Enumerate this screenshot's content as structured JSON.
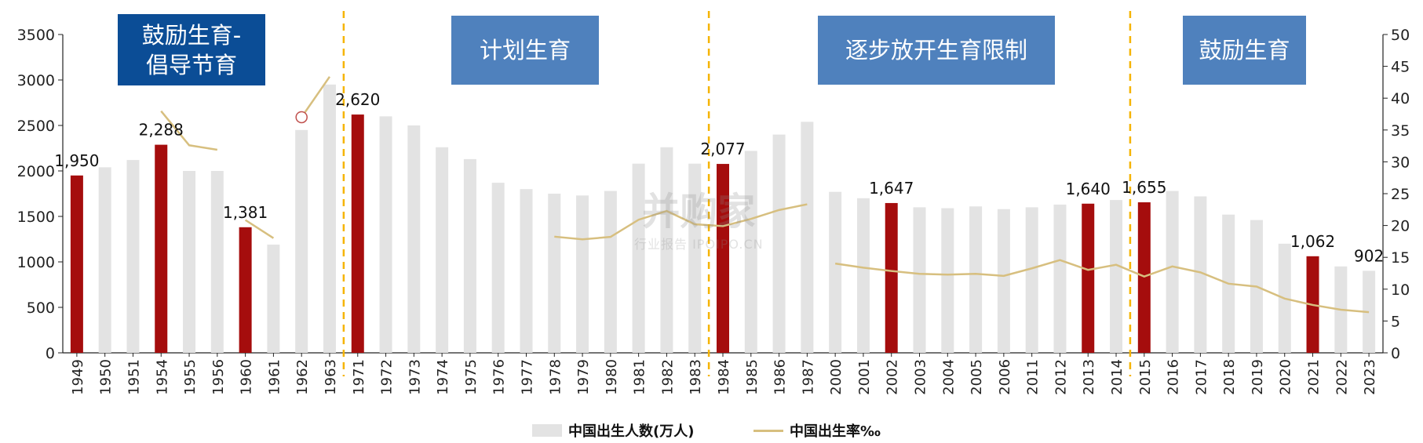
{
  "chart_data": {
    "type": "bar",
    "categories": [
      "1949",
      "1950",
      "1951",
      "1954",
      "1955",
      "1956",
      "1960",
      "1961",
      "1962",
      "1963",
      "1971",
      "1972",
      "1973",
      "1974",
      "1975",
      "1976",
      "1977",
      "1978",
      "1979",
      "1980",
      "1981",
      "1982",
      "1983",
      "1984",
      "1985",
      "1986",
      "1987",
      "2000",
      "2001",
      "2002",
      "2003",
      "2004",
      "2005",
      "2006",
      "2011",
      "2012",
      "2013",
      "2014",
      "2015",
      "2016",
      "2017",
      "2018",
      "2019",
      "2020",
      "2021",
      "2022",
      "2023"
    ],
    "series": [
      {
        "name": "中国出生人数(万人)",
        "type": "bar",
        "axis": "left",
        "values": [
          1950,
          2040,
          2120,
          2288,
          2000,
          2000,
          1381,
          1190,
          2450,
          2950,
          2620,
          2600,
          2500,
          2260,
          2130,
          1870,
          1800,
          1750,
          1730,
          1780,
          2080,
          2260,
          2080,
          2077,
          2220,
          2400,
          2540,
          1770,
          1700,
          1647,
          1600,
          1590,
          1610,
          1580,
          1600,
          1630,
          1640,
          1680,
          1655,
          1780,
          1720,
          1520,
          1460,
          1200,
          1062,
          950,
          902
        ],
        "highlight_indices": [
          0,
          3,
          6,
          10,
          23,
          29,
          36,
          38,
          44
        ],
        "highlight_color": "#a50d0d",
        "base_color": "#e3e3e3"
      },
      {
        "name": "中国出生率‰",
        "type": "line",
        "axis": "right",
        "color": "#d7bf7f",
        "segments": [
          {
            "start": 3,
            "values": [
              37.97,
              32.6,
              31.9
            ]
          },
          {
            "start": 6,
            "values": [
              20.86,
              18.02
            ]
          },
          {
            "start": 8,
            "values": [
              37.01,
              43.37
            ]
          },
          {
            "start": 17,
            "values": [
              18.25,
              17.82,
              18.21,
              20.91,
              22.28,
              20.19,
              19.9,
              21.04,
              22.43,
              23.33
            ]
          },
          {
            "start": 27,
            "values": [
              14.03,
              13.38,
              12.86,
              12.41,
              12.29,
              12.4,
              12.09,
              13.27,
              14.57,
              13.03,
              13.83,
              11.99,
              13.57,
              12.64,
              10.86,
              10.41,
              8.52,
              7.52,
              6.77,
              6.39
            ]
          }
        ],
        "marker_index": 8
      }
    ],
    "data_labels": [
      {
        "index": 0,
        "text": "1,950"
      },
      {
        "index": 3,
        "text": "2,288"
      },
      {
        "index": 6,
        "text": "1,381"
      },
      {
        "index": 10,
        "text": "2,620"
      },
      {
        "index": 23,
        "text": "2,077"
      },
      {
        "index": 29,
        "text": "1,647"
      },
      {
        "index": 36,
        "text": "1,640"
      },
      {
        "index": 38,
        "text": "1,655"
      },
      {
        "index": 44,
        "text": "1,062"
      },
      {
        "index": 46,
        "text": "902"
      }
    ],
    "y_left": {
      "min": 0,
      "max": 3500,
      "ticks": [
        "0",
        "500",
        "1000",
        "1500",
        "2000",
        "2500",
        "3000",
        "3500"
      ]
    },
    "y_right": {
      "min": 0,
      "max": 50,
      "ticks": [
        "0",
        "5",
        "10",
        "15",
        "20",
        "25",
        "30",
        "35",
        "40",
        "45",
        "50"
      ]
    },
    "dividers_after_indices": [
      9,
      22,
      37
    ],
    "divider_color": "#f5b400",
    "grid": false,
    "legend_position": "bottom",
    "policy_boxes": [
      {
        "text": "鼓励生育-\n倡导节育",
        "style": "dark"
      },
      {
        "text": "计划生育",
        "style": "mid"
      },
      {
        "text": "逐步放开生育限制",
        "style": "mid"
      },
      {
        "text": "鼓励生育",
        "style": "mid"
      }
    ],
    "watermark": {
      "main": "并购家",
      "sub": "行业报告 IPOIPO.CN"
    }
  }
}
